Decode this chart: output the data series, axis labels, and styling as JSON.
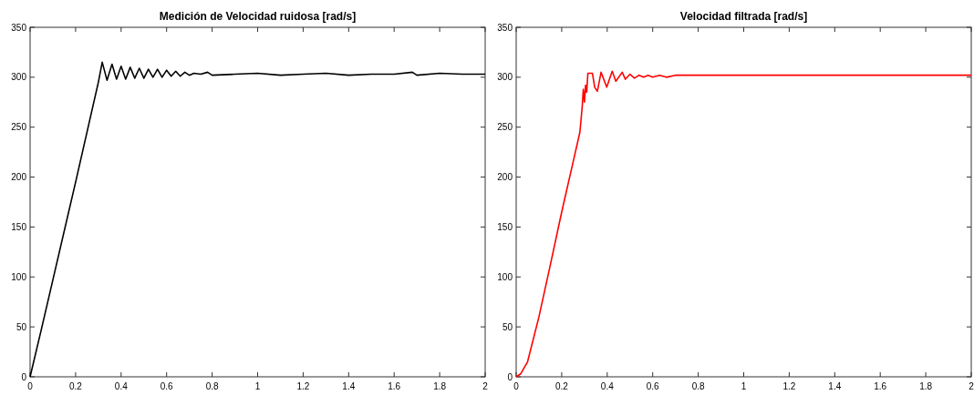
{
  "chart_data": [
    {
      "type": "line",
      "title": "Medición de Velocidad ruidosa [rad/s]",
      "xlim": [
        0,
        2
      ],
      "ylim": [
        0,
        350
      ],
      "xticks": [
        0,
        0.2,
        0.4,
        0.6,
        0.8,
        1,
        1.2,
        1.4,
        1.6,
        1.8,
        2
      ],
      "yticks": [
        0,
        50,
        100,
        150,
        200,
        250,
        300,
        350
      ],
      "series": [
        {
          "color": "#000000",
          "x": [
            0,
            0.05,
            0.1,
            0.2,
            0.3,
            0.317,
            0.338,
            0.36,
            0.38,
            0.4,
            0.42,
            0.44,
            0.46,
            0.48,
            0.5,
            0.52,
            0.54,
            0.56,
            0.58,
            0.6,
            0.62,
            0.64,
            0.66,
            0.68,
            0.7,
            0.72,
            0.75,
            0.78,
            0.8,
            0.9,
            1,
            1.1,
            1.2,
            1.3,
            1.4,
            1.5,
            1.6,
            1.68,
            1.7,
            1.8,
            1.9,
            2
          ],
          "values": [
            0,
            48,
            97,
            195,
            295,
            315,
            297,
            313,
            298,
            311,
            298,
            310,
            299,
            309,
            299,
            308,
            300,
            308,
            300,
            307,
            301,
            306,
            301,
            305,
            302,
            304,
            303,
            305,
            302,
            303,
            304,
            302,
            303,
            304,
            302,
            303,
            303,
            305,
            302,
            304,
            303,
            303
          ]
        }
      ]
    },
    {
      "type": "line",
      "title": "Velocidad filtrada [rad/s]",
      "xlim": [
        0,
        2
      ],
      "ylim": [
        0,
        350
      ],
      "xticks": [
        0,
        0.2,
        0.4,
        0.6,
        0.8,
        1,
        1.2,
        1.4,
        1.6,
        1.8,
        2
      ],
      "yticks": [
        0,
        50,
        100,
        150,
        200,
        250,
        300,
        350
      ],
      "series": [
        {
          "color": "#ff0000",
          "x": [
            0,
            0.02,
            0.05,
            0.1,
            0.15,
            0.2,
            0.25,
            0.28,
            0.29,
            0.295,
            0.3,
            0.305,
            0.31,
            0.315,
            0.335,
            0.345,
            0.357,
            0.373,
            0.398,
            0.422,
            0.438,
            0.466,
            0.48,
            0.5,
            0.52,
            0.54,
            0.56,
            0.58,
            0.6,
            0.63,
            0.66,
            0.7,
            1,
            1.5,
            2
          ],
          "values": [
            0,
            3,
            15,
            60,
            112,
            165,
            215,
            245,
            270,
            288,
            275,
            292,
            285,
            304,
            304,
            290,
            286,
            305,
            290,
            306,
            296,
            305,
            298,
            303,
            299,
            302,
            300,
            302,
            300,
            302,
            300,
            302,
            302,
            302,
            302
          ]
        }
      ]
    }
  ]
}
